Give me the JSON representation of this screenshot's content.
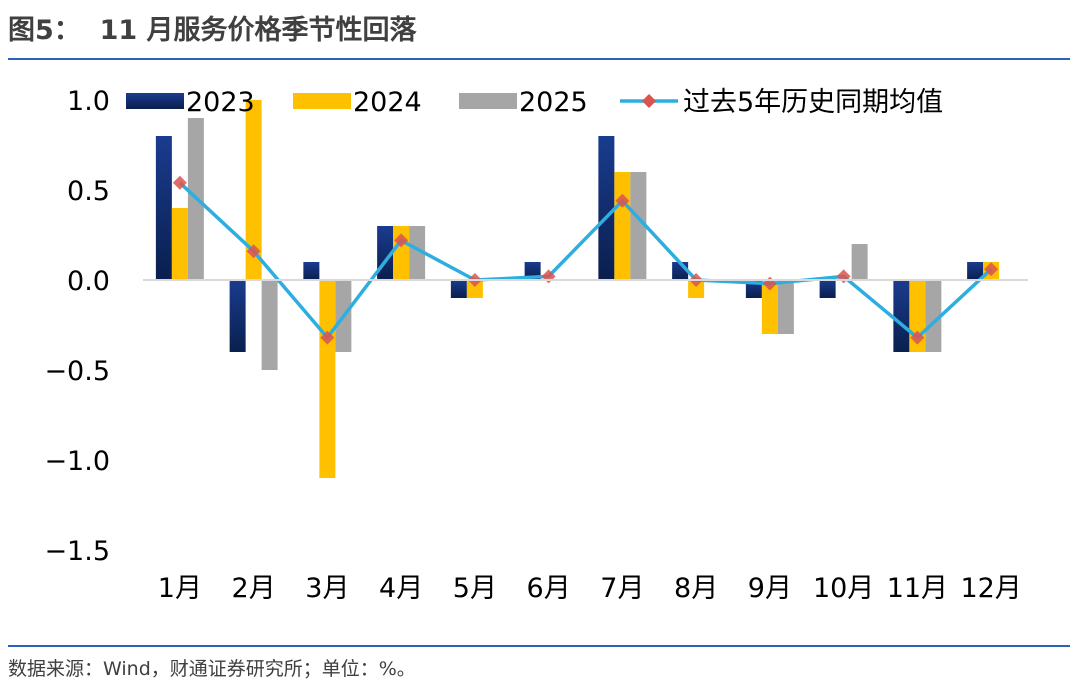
{
  "header": {
    "title": "图5：  11 月服务价格季节性回落"
  },
  "footer": {
    "source": "数据来源：Wind，财通证券研究所；单位：%。"
  },
  "chart_data": {
    "type": "bar",
    "title": "11 月服务价格季节性回落",
    "categories": [
      "1月",
      "2月",
      "3月",
      "4月",
      "5月",
      "6月",
      "7月",
      "8月",
      "9月",
      "10月",
      "11月",
      "12月"
    ],
    "series": [
      {
        "name": "2023",
        "type": "bar",
        "color": "#0b2c6e",
        "values": [
          0.8,
          -0.4,
          0.1,
          0.3,
          -0.1,
          0.1,
          0.8,
          0.1,
          -0.1,
          -0.1,
          -0.4,
          0.1
        ]
      },
      {
        "name": "2024",
        "type": "bar",
        "color": "#ffc000",
        "values": [
          0.4,
          1.0,
          -1.1,
          0.3,
          -0.1,
          0.0,
          0.6,
          -0.1,
          -0.3,
          0.0,
          -0.4,
          0.1
        ]
      },
      {
        "name": "2025",
        "type": "bar",
        "color": "#a6a6a6",
        "values": [
          0.9,
          -0.5,
          -0.4,
          0.3,
          0.0,
          0.0,
          0.6,
          0.0,
          -0.3,
          0.2,
          -0.4,
          null
        ]
      },
      {
        "name": "过去5年历史同期均值",
        "type": "line",
        "color": "#2eaee0",
        "marker_color": "#d9534f",
        "values": [
          0.54,
          0.16,
          -0.32,
          0.22,
          0.0,
          0.02,
          0.44,
          0.0,
          -0.02,
          0.02,
          -0.32,
          0.06
        ]
      }
    ],
    "ylim": [
      -1.5,
      1.0
    ],
    "yticks": [
      1.0,
      0.5,
      0.0,
      -0.5,
      -1.0,
      -1.5
    ],
    "ytick_labels": [
      "1.0",
      "0.5",
      "0.0",
      "−0.5",
      "−1.0",
      "−1.5"
    ],
    "xlabel": "",
    "ylabel": "",
    "legend_position": "top"
  }
}
